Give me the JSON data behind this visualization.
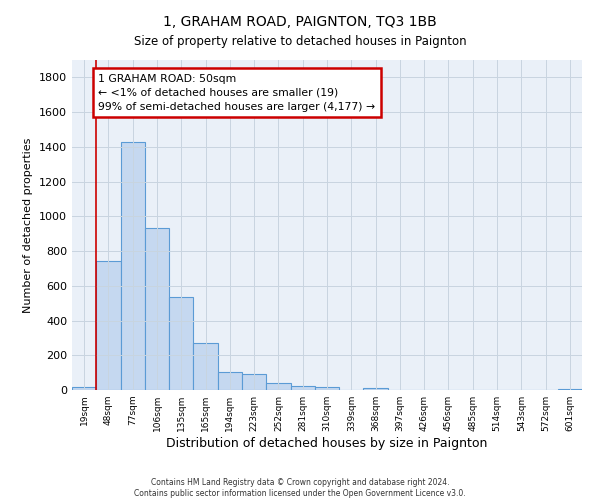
{
  "title": "1, GRAHAM ROAD, PAIGNTON, TQ3 1BB",
  "subtitle": "Size of property relative to detached houses in Paignton",
  "xlabel": "Distribution of detached houses by size in Paignton",
  "ylabel": "Number of detached properties",
  "bar_labels": [
    "19sqm",
    "48sqm",
    "77sqm",
    "106sqm",
    "135sqm",
    "165sqm",
    "194sqm",
    "223sqm",
    "252sqm",
    "281sqm",
    "310sqm",
    "339sqm",
    "368sqm",
    "397sqm",
    "426sqm",
    "456sqm",
    "485sqm",
    "514sqm",
    "543sqm",
    "572sqm",
    "601sqm"
  ],
  "bar_values": [
    18,
    740,
    1430,
    935,
    535,
    270,
    103,
    90,
    40,
    22,
    15,
    0,
    10,
    0,
    0,
    0,
    0,
    0,
    0,
    0,
    8
  ],
  "bar_color": "#c5d8f0",
  "bar_edge_color": "#5b9bd5",
  "annotation_box_text": "1 GRAHAM ROAD: 50sqm\n← <1% of detached houses are smaller (19)\n99% of semi-detached houses are larger (4,177) →",
  "annotation_box_color": "#ffffff",
  "annotation_box_edge_color": "#cc0000",
  "vline_color": "#cc0000",
  "ylim": [
    0,
    1900
  ],
  "yticks": [
    0,
    200,
    400,
    600,
    800,
    1000,
    1200,
    1400,
    1600,
    1800
  ],
  "footer_line1": "Contains HM Land Registry data © Crown copyright and database right 2024.",
  "footer_line2": "Contains public sector information licensed under the Open Government Licence v3.0.",
  "background_color": "#ffffff",
  "ax_background_color": "#eaf0f8",
  "grid_color": "#c8d4e0"
}
